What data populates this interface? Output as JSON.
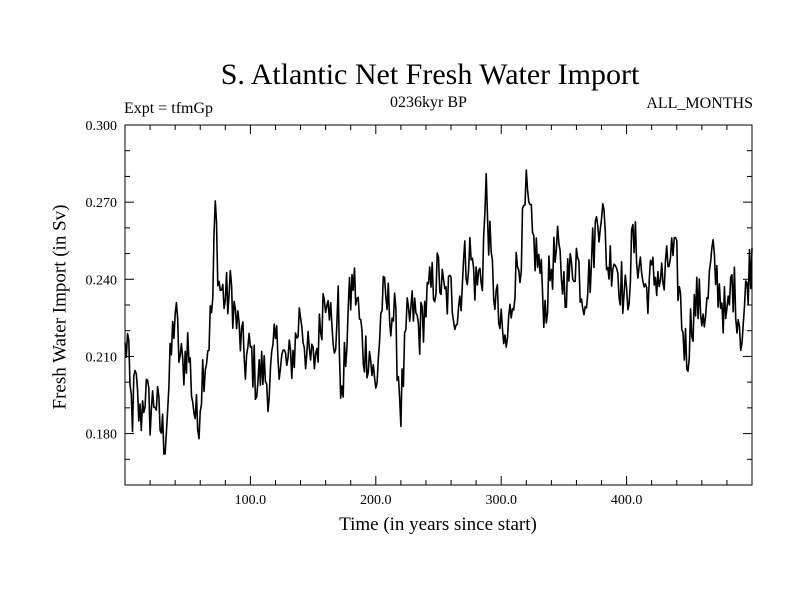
{
  "chart_data": {
    "type": "line",
    "title": "S. Atlantic Net Fresh Water Import",
    "subtitle": "0236kyr BP",
    "experiment_label": "Expt = tfmGp",
    "period_label": "ALL_MONTHS",
    "xlabel": "Time (in years since start)",
    "ylabel": "Fresh Water Import (in Sv)",
    "xlim": [
      0,
      500
    ],
    "ylim": [
      0.16,
      0.3
    ],
    "x_ticks": [
      100,
      200,
      300,
      400
    ],
    "x_tick_labels": [
      "100.0",
      "200.0",
      "300.0",
      "400.0"
    ],
    "y_ticks": [
      0.18,
      0.21,
      0.24,
      0.27,
      0.3
    ],
    "y_tick_labels": [
      "0.180",
      "0.210",
      "0.240",
      "0.270",
      "0.300"
    ],
    "grid": false,
    "line_color": "#000000",
    "anchor_points": [
      [
        0,
        0.212
      ],
      [
        2,
        0.216
      ],
      [
        4,
        0.195
      ],
      [
        6,
        0.188
      ],
      [
        8,
        0.2
      ],
      [
        10,
        0.192
      ],
      [
        12,
        0.185
      ],
      [
        16,
        0.197
      ],
      [
        20,
        0.188
      ],
      [
        24,
        0.195
      ],
      [
        28,
        0.183
      ],
      [
        32,
        0.178
      ],
      [
        35,
        0.198
      ],
      [
        38,
        0.218
      ],
      [
        40,
        0.228
      ],
      [
        43,
        0.212
      ],
      [
        46,
        0.205
      ],
      [
        50,
        0.215
      ],
      [
        55,
        0.19
      ],
      [
        58,
        0.183
      ],
      [
        62,
        0.205
      ],
      [
        66,
        0.214
      ],
      [
        70,
        0.232
      ],
      [
        72,
        0.268
      ],
      [
        75,
        0.238
      ],
      [
        80,
        0.232
      ],
      [
        85,
        0.235
      ],
      [
        88,
        0.225
      ],
      [
        92,
        0.217
      ],
      [
        96,
        0.208
      ],
      [
        100,
        0.212
      ],
      [
        105,
        0.2
      ],
      [
        110,
        0.205
      ],
      [
        115,
        0.198
      ],
      [
        120,
        0.215
      ],
      [
        125,
        0.21
      ],
      [
        130,
        0.206
      ],
      [
        135,
        0.212
      ],
      [
        140,
        0.228
      ],
      [
        145,
        0.21
      ],
      [
        150,
        0.207
      ],
      [
        155,
        0.218
      ],
      [
        158,
        0.232
      ],
      [
        162,
        0.24
      ],
      [
        166,
        0.21
      ],
      [
        170,
        0.228
      ],
      [
        173,
        0.19
      ],
      [
        178,
        0.227
      ],
      [
        182,
        0.24
      ],
      [
        185,
        0.232
      ],
      [
        190,
        0.212
      ],
      [
        195,
        0.212
      ],
      [
        200,
        0.196
      ],
      [
        205,
        0.232
      ],
      [
        210,
        0.23
      ],
      [
        215,
        0.225
      ],
      [
        220,
        0.19
      ],
      [
        225,
        0.222
      ],
      [
        230,
        0.228
      ],
      [
        235,
        0.22
      ],
      [
        240,
        0.23
      ],
      [
        245,
        0.238
      ],
      [
        250,
        0.242
      ],
      [
        255,
        0.232
      ],
      [
        260,
        0.235
      ],
      [
        265,
        0.226
      ],
      [
        270,
        0.245
      ],
      [
        275,
        0.25
      ],
      [
        280,
        0.238
      ],
      [
        285,
        0.244
      ],
      [
        288,
        0.275
      ],
      [
        292,
        0.244
      ],
      [
        296,
        0.232
      ],
      [
        300,
        0.218
      ],
      [
        304,
        0.213
      ],
      [
        310,
        0.238
      ],
      [
        316,
        0.252
      ],
      [
        320,
        0.272
      ],
      [
        325,
        0.255
      ],
      [
        330,
        0.246
      ],
      [
        335,
        0.228
      ],
      [
        340,
        0.245
      ],
      [
        345,
        0.25
      ],
      [
        350,
        0.238
      ],
      [
        355,
        0.242
      ],
      [
        360,
        0.25
      ],
      [
        365,
        0.234
      ],
      [
        370,
        0.24
      ],
      [
        375,
        0.258
      ],
      [
        380,
        0.27
      ],
      [
        385,
        0.245
      ],
      [
        390,
        0.25
      ],
      [
        395,
        0.24
      ],
      [
        400,
        0.23
      ],
      [
        405,
        0.255
      ],
      [
        410,
        0.248
      ],
      [
        415,
        0.235
      ],
      [
        420,
        0.24
      ],
      [
        425,
        0.242
      ],
      [
        430,
        0.238
      ],
      [
        435,
        0.25
      ],
      [
        440,
        0.245
      ],
      [
        445,
        0.22
      ],
      [
        448,
        0.21
      ],
      [
        452,
        0.225
      ],
      [
        456,
        0.232
      ],
      [
        460,
        0.228
      ],
      [
        464,
        0.228
      ],
      [
        468,
        0.248
      ],
      [
        472,
        0.24
      ],
      [
        476,
        0.232
      ],
      [
        480,
        0.222
      ],
      [
        484,
        0.24
      ],
      [
        488,
        0.23
      ],
      [
        492,
        0.218
      ],
      [
        496,
        0.238
      ],
      [
        500,
        0.25
      ]
    ],
    "noise_amplitude": 0.022
  }
}
